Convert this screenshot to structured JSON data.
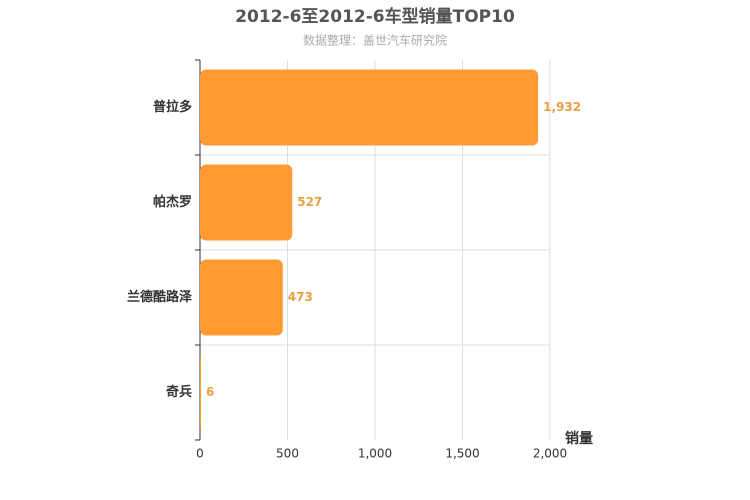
{
  "chart_data": {
    "type": "bar",
    "orientation": "horizontal",
    "title": "2012-6至2012-6车型销量TOP10",
    "subtitle": "数据整理：盖世汽车研究院",
    "x_label": "销量",
    "categories": [
      "普拉多",
      "帕杰罗",
      "兰德酷路泽",
      "奇兵"
    ],
    "values": [
      1932,
      527,
      473,
      6
    ],
    "value_labels": [
      "1,932",
      "527",
      "473",
      "6"
    ],
    "color": "#ff9a33",
    "xlim": [
      0,
      2000
    ],
    "xticks": [
      0,
      500,
      {
        "value": 1000,
        "label": "1,000"
      },
      {
        "value": 1500,
        "label": "1,500"
      },
      {
        "value": 2000,
        "label": "2,000"
      }
    ],
    "grid": true
  }
}
